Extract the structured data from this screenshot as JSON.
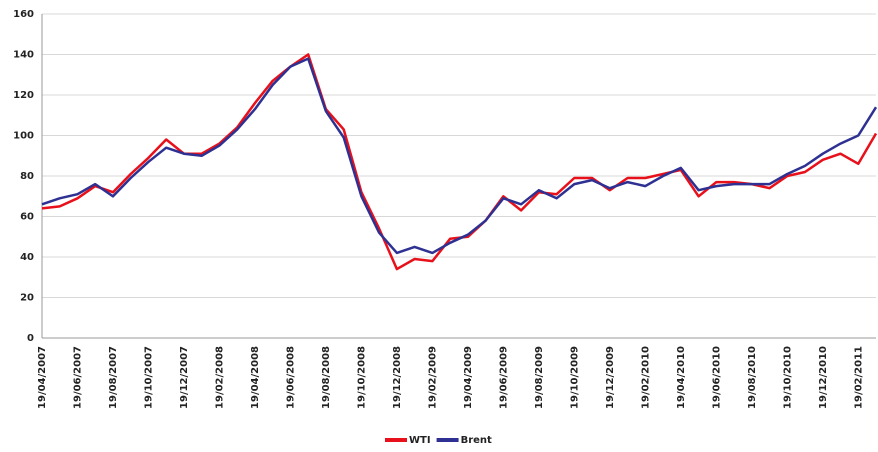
{
  "chart_data": {
    "type": "line",
    "categories": [
      "19/04/2007",
      null,
      "19/06/2007",
      null,
      "19/08/2007",
      null,
      "19/10/2007",
      null,
      "19/12/2007",
      null,
      "19/02/2008",
      null,
      "19/04/2008",
      null,
      "19/06/2008",
      null,
      "19/08/2008",
      null,
      "19/10/2008",
      null,
      "19/12/2008",
      null,
      "19/02/2009",
      null,
      "19/04/2009",
      null,
      "19/06/2009",
      null,
      "19/08/2009",
      null,
      "19/10/2009",
      null,
      "19/12/2009",
      null,
      "19/02/2010",
      null,
      "19/04/2010",
      null,
      "19/06/2010",
      null,
      "19/08/2010",
      null,
      "19/10/2010",
      null,
      "19/12/2010",
      null,
      "19/02/2011",
      null
    ],
    "series": [
      {
        "name": "WTI",
        "color": "#e8101a",
        "values": [
          64,
          65,
          69,
          75,
          72,
          81,
          89,
          98,
          91,
          91,
          96,
          104,
          116,
          127,
          134,
          140,
          113,
          103,
          72,
          54,
          34,
          39,
          38,
          49,
          50,
          58,
          70,
          63,
          72,
          71,
          79,
          79,
          73,
          79,
          79,
          81,
          83,
          70,
          77,
          77,
          76,
          74,
          80,
          82,
          88,
          91,
          86,
          101
        ]
      },
      {
        "name": "Brent",
        "color": "#2e3192",
        "values": [
          66,
          69,
          71,
          76,
          70,
          79,
          87,
          94,
          91,
          90,
          95,
          103,
          113,
          125,
          134,
          138,
          112,
          99,
          70,
          52,
          42,
          45,
          42,
          47,
          51,
          58,
          69,
          66,
          73,
          69,
          76,
          78,
          74,
          77,
          75,
          80,
          84,
          73,
          75,
          76,
          76,
          76,
          81,
          85,
          91,
          96,
          100,
          114
        ]
      }
    ],
    "ylim": [
      0,
      160
    ],
    "yticks": [
      0,
      20,
      40,
      60,
      80,
      100,
      120,
      140,
      160
    ],
    "grid": true,
    "legend": "bottom"
  }
}
